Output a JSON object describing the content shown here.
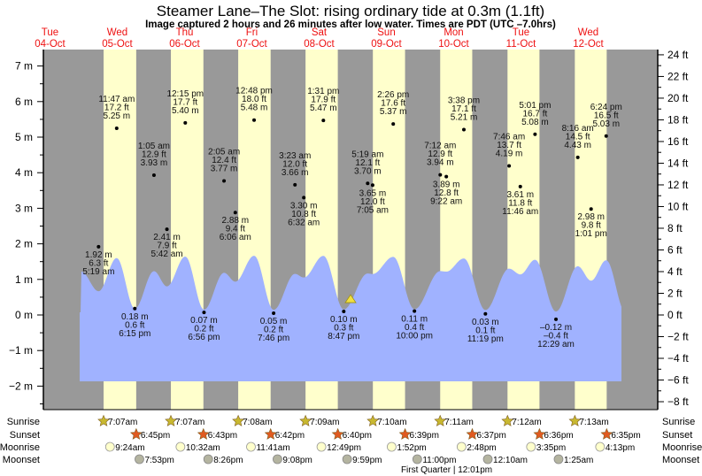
{
  "title": "Steamer Lane–The Slot: rising  ordinary tide at 0.3m (1.1ft)",
  "subtitle": "Image captured 2 hours and 26 minutes after low water. Times are PDT (UTC –7.0hrs)",
  "colors": {
    "night": "#999999",
    "day": "#ffffcc",
    "water": "#a0b2ff",
    "day_label": "#ee1111",
    "sunrise": "#c8b830",
    "sunset": "#e05a20",
    "moonrise": "#ffffcc",
    "moonset": "#b4b4a0",
    "marker": "#f0e040"
  },
  "chart_data": {
    "type": "area",
    "title": "Steamer Lane–The Slot: rising  ordinary tide at 0.3m (1.1ft)",
    "ylabel_left": "m",
    "ylabel_right": "ft",
    "ylim_m": [
      -2.5,
      7.5
    ],
    "left_ticks": [
      "7 m",
      "6 m",
      "5 m",
      "4 m",
      "3 m",
      "2 m",
      "1 m",
      "0 m",
      "−1 m",
      "−2 m"
    ],
    "left_tick_values": [
      7,
      6,
      5,
      4,
      3,
      2,
      1,
      0,
      -1,
      -2
    ],
    "right_ticks": [
      "24 ft",
      "22 ft",
      "20 ft",
      "18 ft",
      "16 ft",
      "14 ft",
      "12 ft",
      "10 ft",
      "8 ft",
      "6 ft",
      "4 ft",
      "2 ft",
      "0 ft",
      "−2 ft",
      "−4 ft",
      "−6 ft",
      "−8 ft"
    ],
    "right_tick_values": [
      24,
      22,
      20,
      18,
      16,
      14,
      12,
      10,
      8,
      6,
      4,
      2,
      0,
      -2,
      -4,
      -6,
      -8
    ],
    "days": [
      {
        "dow": "Tue",
        "date": "04-Oct",
        "sunrise": null,
        "sunset": null
      },
      {
        "dow": "Wed",
        "date": "05-Oct",
        "sunrise": "7:07am",
        "sunset": "6:45pm"
      },
      {
        "dow": "Thu",
        "date": "06-Oct",
        "sunrise": "7:07am",
        "sunset": "6:43pm"
      },
      {
        "dow": "Fri",
        "date": "07-Oct",
        "sunrise": "7:08am",
        "sunset": "6:42pm"
      },
      {
        "dow": "Sat",
        "date": "08-Oct",
        "sunrise": "7:09am",
        "sunset": "6:40pm"
      },
      {
        "dow": "Sun",
        "date": "09-Oct",
        "sunrise": "7:10am",
        "sunset": "6:39pm"
      },
      {
        "dow": "Mon",
        "date": "10-Oct",
        "sunrise": "7:11am",
        "sunset": "6:37pm"
      },
      {
        "dow": "Tue",
        "date": "11-Oct",
        "sunrise": "7:12am",
        "sunset": "6:36pm"
      },
      {
        "dow": "Wed",
        "date": "12-Oct",
        "sunrise": "7:13am",
        "sunset": "6:35pm"
      }
    ],
    "extremes": [
      {
        "day": 1,
        "time": "5:19 am",
        "m": "1.92 m",
        "ft": "6.3 ft",
        "value": 1.92,
        "type": "low"
      },
      {
        "day": 1,
        "time": "11:47 am",
        "m": "5.25 m",
        "ft": "17.2 ft",
        "value": 5.25,
        "type": "high"
      },
      {
        "day": 1,
        "time": "6:15 pm",
        "m": "0.18 m",
        "ft": "0.6 ft",
        "value": 0.18,
        "type": "low"
      },
      {
        "day": 2,
        "time": "1:05 am",
        "m": "3.93 m",
        "ft": "12.9 ft",
        "value": 3.93,
        "type": "high"
      },
      {
        "day": 2,
        "time": "5:42 am",
        "m": "2.41 m",
        "ft": "7.9 ft",
        "value": 2.41,
        "type": "low"
      },
      {
        "day": 2,
        "time": "12:15 pm",
        "m": "5.40 m",
        "ft": "17.7 ft",
        "value": 5.4,
        "type": "high"
      },
      {
        "day": 2,
        "time": "6:56 pm",
        "m": "0.07 m",
        "ft": "0.2 ft",
        "value": 0.07,
        "type": "low"
      },
      {
        "day": 3,
        "time": "2:05 am",
        "m": "3.77 m",
        "ft": "12.4 ft",
        "value": 3.77,
        "type": "high"
      },
      {
        "day": 3,
        "time": "6:06 am",
        "m": "2.88 m",
        "ft": "9.4 ft",
        "value": 2.88,
        "type": "low"
      },
      {
        "day": 3,
        "time": "12:48 pm",
        "m": "5.48 m",
        "ft": "18.0 ft",
        "value": 5.48,
        "type": "high"
      },
      {
        "day": 3,
        "time": "7:46 pm",
        "m": "0.05 m",
        "ft": "0.2 ft",
        "value": 0.05,
        "type": "low"
      },
      {
        "day": 4,
        "time": "3:23 am",
        "m": "3.66 m",
        "ft": "12.0 ft",
        "value": 3.66,
        "type": "high"
      },
      {
        "day": 4,
        "time": "6:32 am",
        "m": "3.30 m",
        "ft": "10.8 ft",
        "value": 3.3,
        "type": "low"
      },
      {
        "day": 4,
        "time": "1:31 pm",
        "m": "5.47 m",
        "ft": "17.9 ft",
        "value": 5.47,
        "type": "high"
      },
      {
        "day": 4,
        "time": "8:47 pm",
        "m": "0.10 m",
        "ft": "0.3 ft",
        "value": 0.1,
        "type": "low"
      },
      {
        "day": 5,
        "time": "5:19 am",
        "m": "3.70 m",
        "ft": "12.1 ft",
        "value": 3.7,
        "type": "high"
      },
      {
        "day": 5,
        "time": "7:05 am",
        "m": "3.65 m",
        "ft": "12.0 ft",
        "value": 3.65,
        "type": "low"
      },
      {
        "day": 5,
        "time": "2:26 pm",
        "m": "5.37 m",
        "ft": "17.6 ft",
        "value": 5.37,
        "type": "high"
      },
      {
        "day": 5,
        "time": "10:00 pm",
        "m": "0.11 m",
        "ft": "0.4 ft",
        "value": 0.11,
        "type": "low"
      },
      {
        "day": 6,
        "time": "7:12 am",
        "m": "3.94 m",
        "ft": "12.9 ft",
        "value": 3.94,
        "type": "high"
      },
      {
        "day": 6,
        "time": "9:22 am",
        "m": "3.89 m",
        "ft": "12.8 ft",
        "value": 3.89,
        "type": "low"
      },
      {
        "day": 6,
        "time": "3:38 pm",
        "m": "5.21 m",
        "ft": "17.1 ft",
        "value": 5.21,
        "type": "high"
      },
      {
        "day": 6,
        "time": "11:19 pm",
        "m": "0.03 m",
        "ft": "0.1 ft",
        "value": 0.03,
        "type": "low"
      },
      {
        "day": 7,
        "time": "7:46 am",
        "m": "4.19 m",
        "ft": "13.7 ft",
        "value": 4.19,
        "type": "high"
      },
      {
        "day": 7,
        "time": "11:46 am",
        "m": "3.61 m",
        "ft": "11.8 ft",
        "value": 3.61,
        "type": "low"
      },
      {
        "day": 7,
        "time": "5:01 pm",
        "m": "5.08 m",
        "ft": "16.7 ft",
        "value": 5.08,
        "type": "high"
      },
      {
        "day": 8,
        "time": "12:29 am",
        "m": "–0.12 m",
        "ft": "–0.4 ft",
        "value": -0.12,
        "type": "low"
      },
      {
        "day": 8,
        "time": "8:16 am",
        "m": "4.43 m",
        "ft": "14.5 ft",
        "value": 4.43,
        "type": "high"
      },
      {
        "day": 8,
        "time": "1:01 pm",
        "m": "2.98 m",
        "ft": "9.8 ft",
        "value": 2.98,
        "type": "low"
      },
      {
        "day": 8,
        "time": "6:24 pm",
        "m": "5.03 m",
        "ft": "16.5 ft",
        "value": 5.03,
        "type": "high"
      }
    ],
    "current": {
      "day": 4,
      "time": "11:13 pm",
      "value_m": 0.3,
      "value_ft": 1.1
    }
  },
  "rows": {
    "sunrise": "Sunrise",
    "sunset": "Sunset",
    "moonrise": "Moonrise",
    "moonset": "Moonset"
  },
  "moonrise": [
    {
      "day": 1,
      "time": "9:24am"
    },
    {
      "day": 2,
      "time": "10:32am"
    },
    {
      "day": 3,
      "time": "11:41am"
    },
    {
      "day": 4,
      "time": "12:49pm"
    },
    {
      "day": 5,
      "time": "1:52pm"
    },
    {
      "day": 6,
      "time": "2:48pm"
    },
    {
      "day": 7,
      "time": "3:35pm"
    },
    {
      "day": 8,
      "time": "4:13pm"
    }
  ],
  "moonset": [
    {
      "day": 1,
      "time": "7:53pm"
    },
    {
      "day": 2,
      "time": "8:26pm"
    },
    {
      "day": 3,
      "time": "9:08pm"
    },
    {
      "day": 4,
      "time": "9:59pm"
    },
    {
      "day": 5,
      "time": "11:00pm"
    },
    {
      "day": 7,
      "time": "12:10am"
    },
    {
      "day": 8,
      "time": "1:25am"
    }
  ],
  "moon_phase": {
    "day": 6,
    "time": "12:01pm",
    "label": "First Quarter | 12:01pm"
  }
}
